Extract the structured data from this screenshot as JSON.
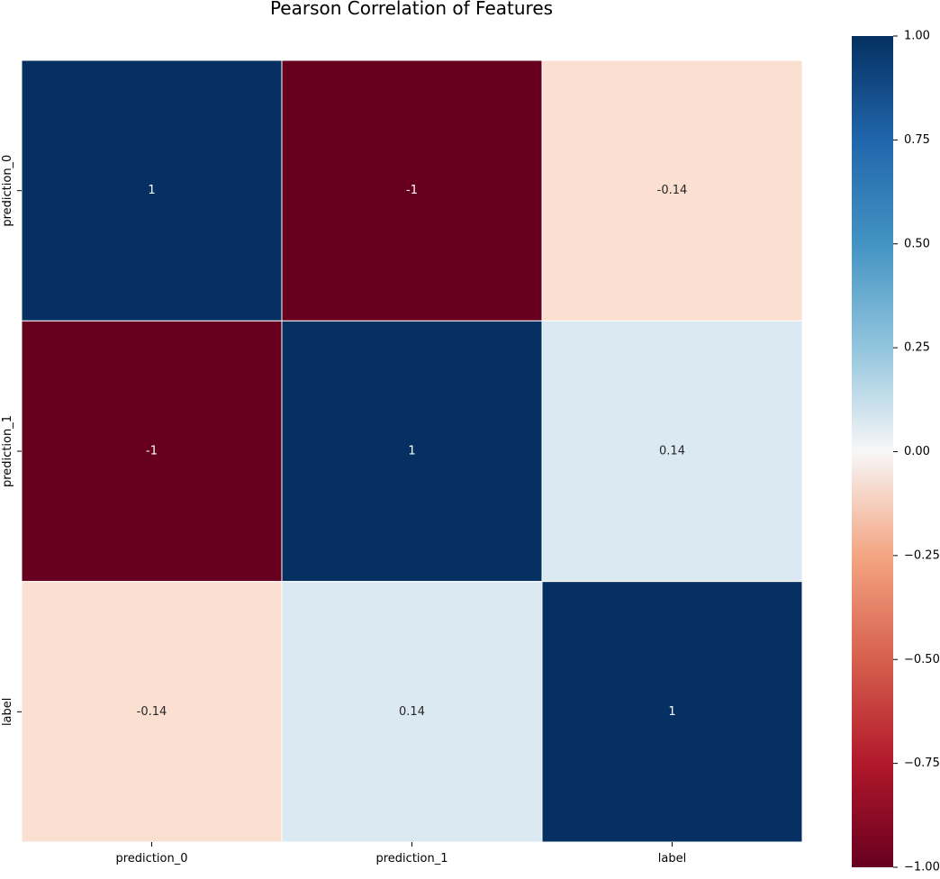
{
  "chart_data": {
    "type": "heatmap",
    "title": "Pearson Correlation of Features",
    "xlabel": "",
    "ylabel": "",
    "x_categories": [
      "prediction_0",
      "prediction_1",
      "label"
    ],
    "y_categories": [
      "prediction_0",
      "prediction_1",
      "label"
    ],
    "values": [
      [
        1,
        -1,
        -0.14
      ],
      [
        -1,
        1,
        0.14
      ],
      [
        -0.14,
        0.14,
        1
      ]
    ],
    "annotations": [
      [
        "1",
        "-1",
        "-0.14"
      ],
      [
        "-1",
        "1",
        "0.14"
      ],
      [
        "-0.14",
        "0.14",
        "1"
      ]
    ],
    "colormap": "RdBu",
    "color_range": [
      -1.0,
      1.0
    ],
    "colorbar": {
      "ticks": [
        1.0,
        0.75,
        0.5,
        0.25,
        0.0,
        -0.25,
        -0.5,
        -0.75,
        -1.0
      ],
      "tick_labels": [
        "1.00",
        "0.75",
        "0.50",
        "0.25",
        "0.00",
        "−0.25",
        "−0.50",
        "−0.75",
        "−1.00"
      ],
      "placement": "right"
    },
    "colors": {
      "dark_blue": "#053061",
      "dark_red": "#67001f",
      "light_peach": "#fbe0d1",
      "light_blue": "#dbe9f2",
      "text_dark": "#262626",
      "text_light": "#ffffff"
    }
  }
}
